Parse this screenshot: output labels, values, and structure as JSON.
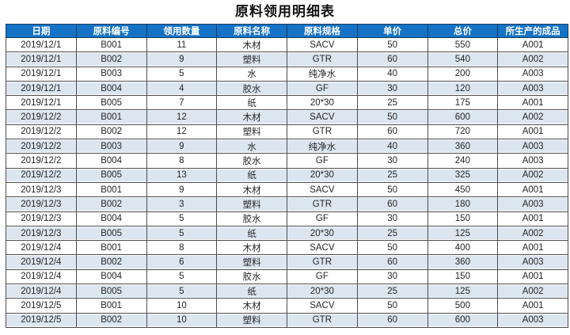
{
  "title": "原料领用明细表",
  "colors": {
    "header_bg": "#1572C4",
    "band_row_bg": "#DCE6F1",
    "border": "#4d4d4d",
    "header_text": "#FFFFFF"
  },
  "table": {
    "columns": [
      "日期",
      "原料编号",
      "领用数量",
      "原料名称",
      "原料规格",
      "单价",
      "总价",
      "所生产的成品"
    ],
    "rows": [
      [
        "2019/12/1",
        "B001",
        "11",
        "木材",
        "SACV",
        "50",
        "550",
        "A001"
      ],
      [
        "2019/12/1",
        "B002",
        "9",
        "塑料",
        "GTR",
        "60",
        "540",
        "A002"
      ],
      [
        "2019/12/1",
        "B003",
        "5",
        "水",
        "纯净水",
        "40",
        "200",
        "A003"
      ],
      [
        "2019/12/1",
        "B004",
        "4",
        "胶水",
        "GF",
        "30",
        "120",
        "A003"
      ],
      [
        "2019/12/1",
        "B005",
        "7",
        "纸",
        "20*30",
        "25",
        "175",
        "A001"
      ],
      [
        "2019/12/2",
        "B001",
        "12",
        "木材",
        "SACV",
        "50",
        "600",
        "A002"
      ],
      [
        "2019/12/2",
        "B002",
        "12",
        "塑料",
        "GTR",
        "60",
        "720",
        "A001"
      ],
      [
        "2019/12/2",
        "B003",
        "9",
        "水",
        "纯净水",
        "40",
        "360",
        "A003"
      ],
      [
        "2019/12/2",
        "B004",
        "8",
        "胶水",
        "GF",
        "30",
        "240",
        "A003"
      ],
      [
        "2019/12/2",
        "B005",
        "13",
        "纸",
        "20*30",
        "25",
        "325",
        "A002"
      ],
      [
        "2019/12/3",
        "B001",
        "9",
        "木材",
        "SACV",
        "50",
        "450",
        "A001"
      ],
      [
        "2019/12/3",
        "B002",
        "3",
        "塑料",
        "GTR",
        "60",
        "180",
        "A003"
      ],
      [
        "2019/12/3",
        "B004",
        "5",
        "胶水",
        "GF",
        "30",
        "150",
        "A001"
      ],
      [
        "2019/12/3",
        "B005",
        "5",
        "纸",
        "20*30",
        "25",
        "125",
        "A002"
      ],
      [
        "2019/12/4",
        "B001",
        "8",
        "木材",
        "SACV",
        "50",
        "400",
        "A001"
      ],
      [
        "2019/12/4",
        "B002",
        "6",
        "塑料",
        "GTR",
        "60",
        "360",
        "A003"
      ],
      [
        "2019/12/4",
        "B004",
        "5",
        "胶水",
        "GF",
        "30",
        "150",
        "A001"
      ],
      [
        "2019/12/4",
        "B005",
        "5",
        "纸",
        "20*30",
        "25",
        "125",
        "A002"
      ],
      [
        "2019/12/5",
        "B001",
        "10",
        "木材",
        "SACV",
        "50",
        "500",
        "A001"
      ],
      [
        "2019/12/5",
        "B002",
        "10",
        "塑料",
        "GTR",
        "60",
        "600",
        "A003"
      ]
    ]
  }
}
